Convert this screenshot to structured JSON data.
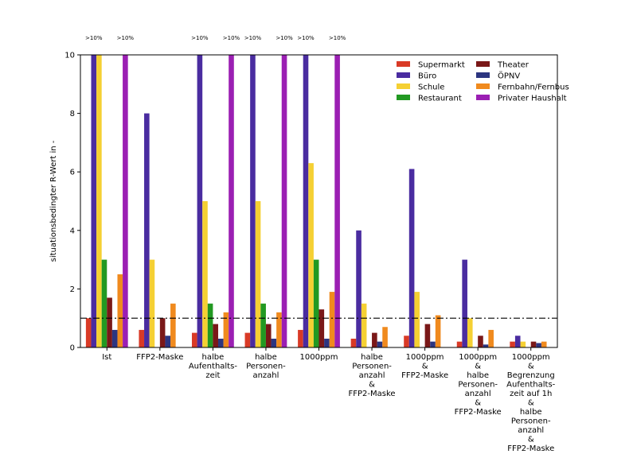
{
  "chart_data": {
    "type": "bar",
    "title": "",
    "xlabel": "",
    "ylabel": "situationsbedingter R-Wert in -",
    "ylim": [
      0,
      10
    ],
    "yticks": [
      0,
      2,
      4,
      6,
      8,
      10
    ],
    "threshold": 1,
    "grid": false,
    "legend_position": "top-right",
    "categories": [
      [
        "Ist"
      ],
      [
        "FFP2-Maske"
      ],
      [
        "halbe",
        "Aufenthalts-",
        "zeit"
      ],
      [
        "halbe",
        "Personen-",
        "anzahl"
      ],
      [
        "1000ppm"
      ],
      [
        "halbe",
        "Personen-",
        "anzahl",
        "&",
        "FFP2-Maske"
      ],
      [
        "1000ppm",
        "&",
        "FFP2-Maske"
      ],
      [
        "1000ppm",
        "&",
        "halbe",
        "Personen-",
        "anzahl",
        "&",
        "FFP2-Maske"
      ],
      [
        "1000ppm",
        "&",
        "Begrenzung",
        "Aufenthalts-",
        "zeit auf 1h",
        "&",
        "halbe",
        "Personen-",
        "anzahl",
        "&",
        "FFP2-Maske"
      ]
    ],
    "series": [
      {
        "name": "Supermarkt",
        "color": "#d93a26",
        "values": [
          1.0,
          0.6,
          0.5,
          0.5,
          0.6,
          0.3,
          0.4,
          0.2,
          0.2
        ]
      },
      {
        "name": "Büro",
        "color": "#4a2ca0",
        "values": [
          10,
          8.0,
          10,
          10,
          10,
          4.0,
          6.1,
          3.0,
          0.4
        ]
      },
      {
        "name": "Schule",
        "color": "#f5d033",
        "values": [
          10,
          3.0,
          5.0,
          5.0,
          6.3,
          1.5,
          1.9,
          1.0,
          0.2
        ]
      },
      {
        "name": "Restaurant",
        "color": "#229922",
        "values": [
          3.0,
          0,
          1.5,
          1.5,
          3.0,
          0,
          0,
          0,
          0
        ]
      },
      {
        "name": "Theater",
        "color": "#7a1818",
        "values": [
          1.7,
          1.0,
          0.8,
          0.8,
          1.3,
          0.5,
          0.8,
          0.4,
          0.2
        ]
      },
      {
        "name": "ÖPNV",
        "color": "#2c3580",
        "values": [
          0.6,
          0.4,
          0.3,
          0.3,
          0.3,
          0.2,
          0.2,
          0.1,
          0.15
        ]
      },
      {
        "name": "Fernbahn/Fernbus",
        "color": "#f08a1e",
        "values": [
          2.5,
          1.5,
          1.2,
          1.2,
          1.9,
          0.7,
          1.1,
          0.6,
          0.2
        ]
      },
      {
        "name": "Privater Haushalt",
        "color": "#9b1fb3",
        "values": [
          10,
          0,
          10,
          10,
          10,
          0,
          0,
          0,
          0
        ]
      }
    ],
    "annotations": [
      {
        "category": 0,
        "series": "Büro",
        "text": ">10%"
      },
      {
        "category": 0,
        "series": "Privater Haushalt",
        "text": ">10%"
      },
      {
        "category": 2,
        "series": "Büro",
        "text": ">10%"
      },
      {
        "category": 2,
        "series": "Privater Haushalt",
        "text": ">10%"
      },
      {
        "category": 3,
        "series": "Büro",
        "text": ">10%"
      },
      {
        "category": 3,
        "series": "Privater Haushalt",
        "text": ">10%"
      },
      {
        "category": 4,
        "series": "Büro",
        "text": ">10%"
      },
      {
        "category": 4,
        "series": "Privater Haushalt",
        "text": ">10%"
      }
    ]
  }
}
